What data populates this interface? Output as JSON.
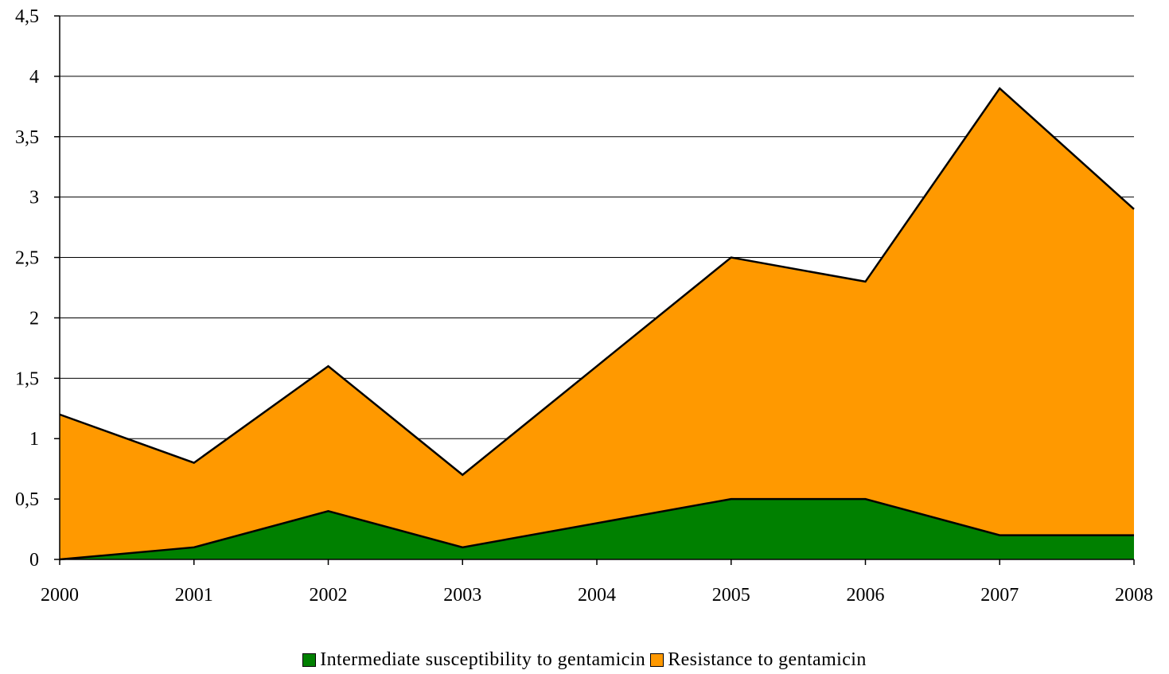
{
  "chart_data": {
    "type": "area",
    "stacked": true,
    "title": "",
    "xlabel": "",
    "ylabel": "",
    "categories": [
      "2000",
      "2001",
      "2002",
      "2003",
      "2004",
      "2005",
      "2006",
      "2007",
      "2008"
    ],
    "series": [
      {
        "name": "Intermediate susceptibility to gentamicin",
        "color": "#008000",
        "values": [
          0,
          0.1,
          0.4,
          0.1,
          0.3,
          0.5,
          0.5,
          0.2,
          0.2
        ]
      },
      {
        "name": "Resistance to gentamicin",
        "color": "#FF9900",
        "values": [
          1.2,
          0.7,
          1.2,
          0.6,
          1.3,
          2.0,
          1.8,
          3.7,
          2.7
        ]
      }
    ],
    "ylim": [
      0,
      4.5
    ],
    "yticks": [
      0,
      0.5,
      1,
      1.5,
      2,
      2.5,
      3,
      3.5,
      4,
      4.5
    ],
    "ytick_labels": [
      "0",
      "0,5",
      "1",
      "1,5",
      "2",
      "2,5",
      "3",
      "3,5",
      "4",
      "4,5"
    ],
    "grid": "horizontal",
    "legend_position": "bottom"
  }
}
